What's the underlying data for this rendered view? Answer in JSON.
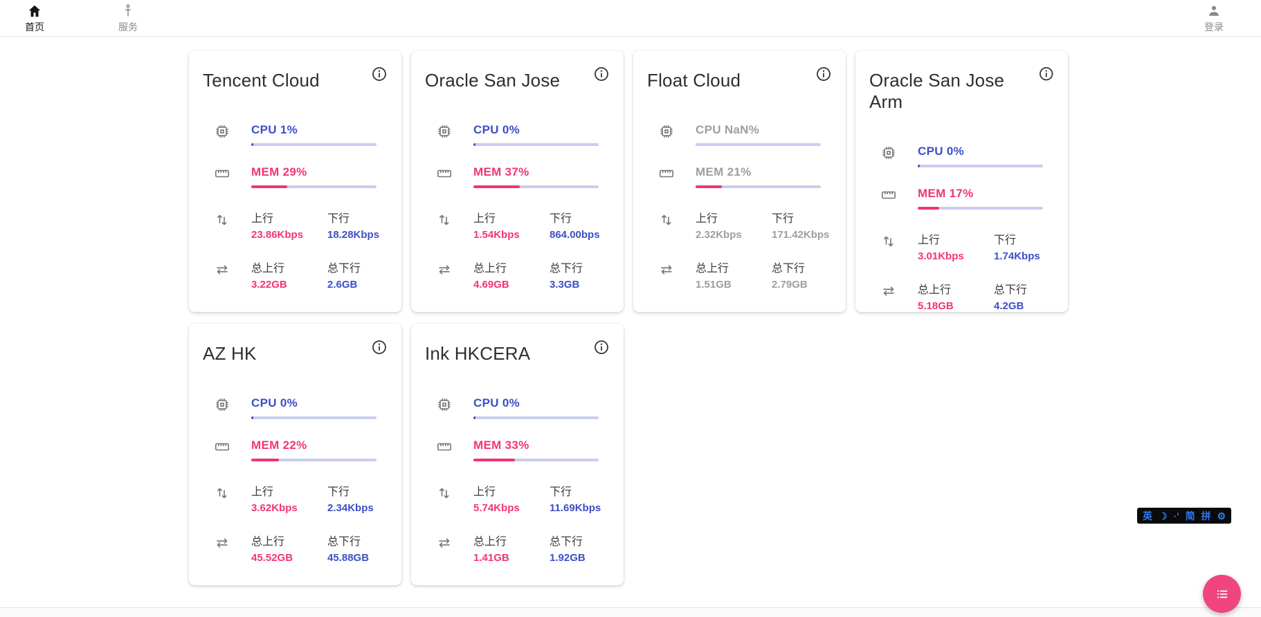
{
  "nav": {
    "home": {
      "label": "首页"
    },
    "services": {
      "label": "服务"
    },
    "login": {
      "label": "登录"
    }
  },
  "colors": {
    "accent_blue": "#3c4fc5",
    "accent_pink": "#f1366f",
    "bar_track": "#c9cdee",
    "muted_gray": "#9e9e9e",
    "fab_pink": "#f0457f"
  },
  "cards": [
    {
      "title": "Tencent Cloud",
      "state": "online",
      "cpu": {
        "label": "CPU 1%",
        "pct": 1
      },
      "mem": {
        "label": "MEM 29%",
        "pct": 29
      },
      "net": {
        "up_label": "上行",
        "up": "23.86Kbps",
        "down_label": "下行",
        "down": "18.28Kbps"
      },
      "total": {
        "up_label": "总上行",
        "up": "3.22GB",
        "down_label": "总下行",
        "down": "2.6GB"
      }
    },
    {
      "title": "Oracle San Jose",
      "state": "online",
      "cpu": {
        "label": "CPU 0%",
        "pct": 0
      },
      "mem": {
        "label": "MEM 37%",
        "pct": 37
      },
      "net": {
        "up_label": "上行",
        "up": "1.54Kbps",
        "down_label": "下行",
        "down": "864.00bps"
      },
      "total": {
        "up_label": "总上行",
        "up": "4.69GB",
        "down_label": "总下行",
        "down": "3.3GB"
      }
    },
    {
      "title": "Float Cloud",
      "state": "offline",
      "cpu": {
        "label": "CPU NaN%",
        "pct": null
      },
      "mem": {
        "label": "MEM 21%",
        "pct": 21
      },
      "net": {
        "up_label": "上行",
        "up": "2.32Kbps",
        "down_label": "下行",
        "down": "171.42Kbps"
      },
      "total": {
        "up_label": "总上行",
        "up": "1.51GB",
        "down_label": "总下行",
        "down": "2.79GB"
      }
    },
    {
      "title": "Oracle San Jose Arm",
      "state": "online",
      "cpu": {
        "label": "CPU 0%",
        "pct": 0
      },
      "mem": {
        "label": "MEM 17%",
        "pct": 17
      },
      "net": {
        "up_label": "上行",
        "up": "3.01Kbps",
        "down_label": "下行",
        "down": "1.74Kbps"
      },
      "total": {
        "up_label": "总上行",
        "up": "5.18GB",
        "down_label": "总下行",
        "down": "4.2GB"
      }
    },
    {
      "title": "AZ HK",
      "state": "online",
      "cpu": {
        "label": "CPU 0%",
        "pct": 0
      },
      "mem": {
        "label": "MEM 22%",
        "pct": 22
      },
      "net": {
        "up_label": "上行",
        "up": "3.62Kbps",
        "down_label": "下行",
        "down": "2.34Kbps"
      },
      "total": {
        "up_label": "总上行",
        "up": "45.52GB",
        "down_label": "总下行",
        "down": "45.88GB"
      }
    },
    {
      "title": "Ink HKCERA",
      "state": "online",
      "cpu": {
        "label": "CPU 0%",
        "pct": 0
      },
      "mem": {
        "label": "MEM 33%",
        "pct": 33
      },
      "net": {
        "up_label": "上行",
        "up": "5.74Kbps",
        "down_label": "下行",
        "down": "11.69Kbps"
      },
      "total": {
        "up_label": "总上行",
        "up": "1.41GB",
        "down_label": "总下行",
        "down": "1.92GB"
      }
    }
  ],
  "ime": {
    "items": [
      {
        "label": "英",
        "icon": "lang-indicator"
      },
      {
        "label": "☽",
        "icon": "moon-icon"
      },
      {
        "label": "·'",
        "icon": "punctuation-indicator"
      },
      {
        "label": "简",
        "icon": "simplified-chinese-indicator"
      },
      {
        "label": "拼",
        "icon": "pinyin-indicator"
      },
      {
        "label": "⚙",
        "icon": "gear-icon"
      }
    ]
  }
}
